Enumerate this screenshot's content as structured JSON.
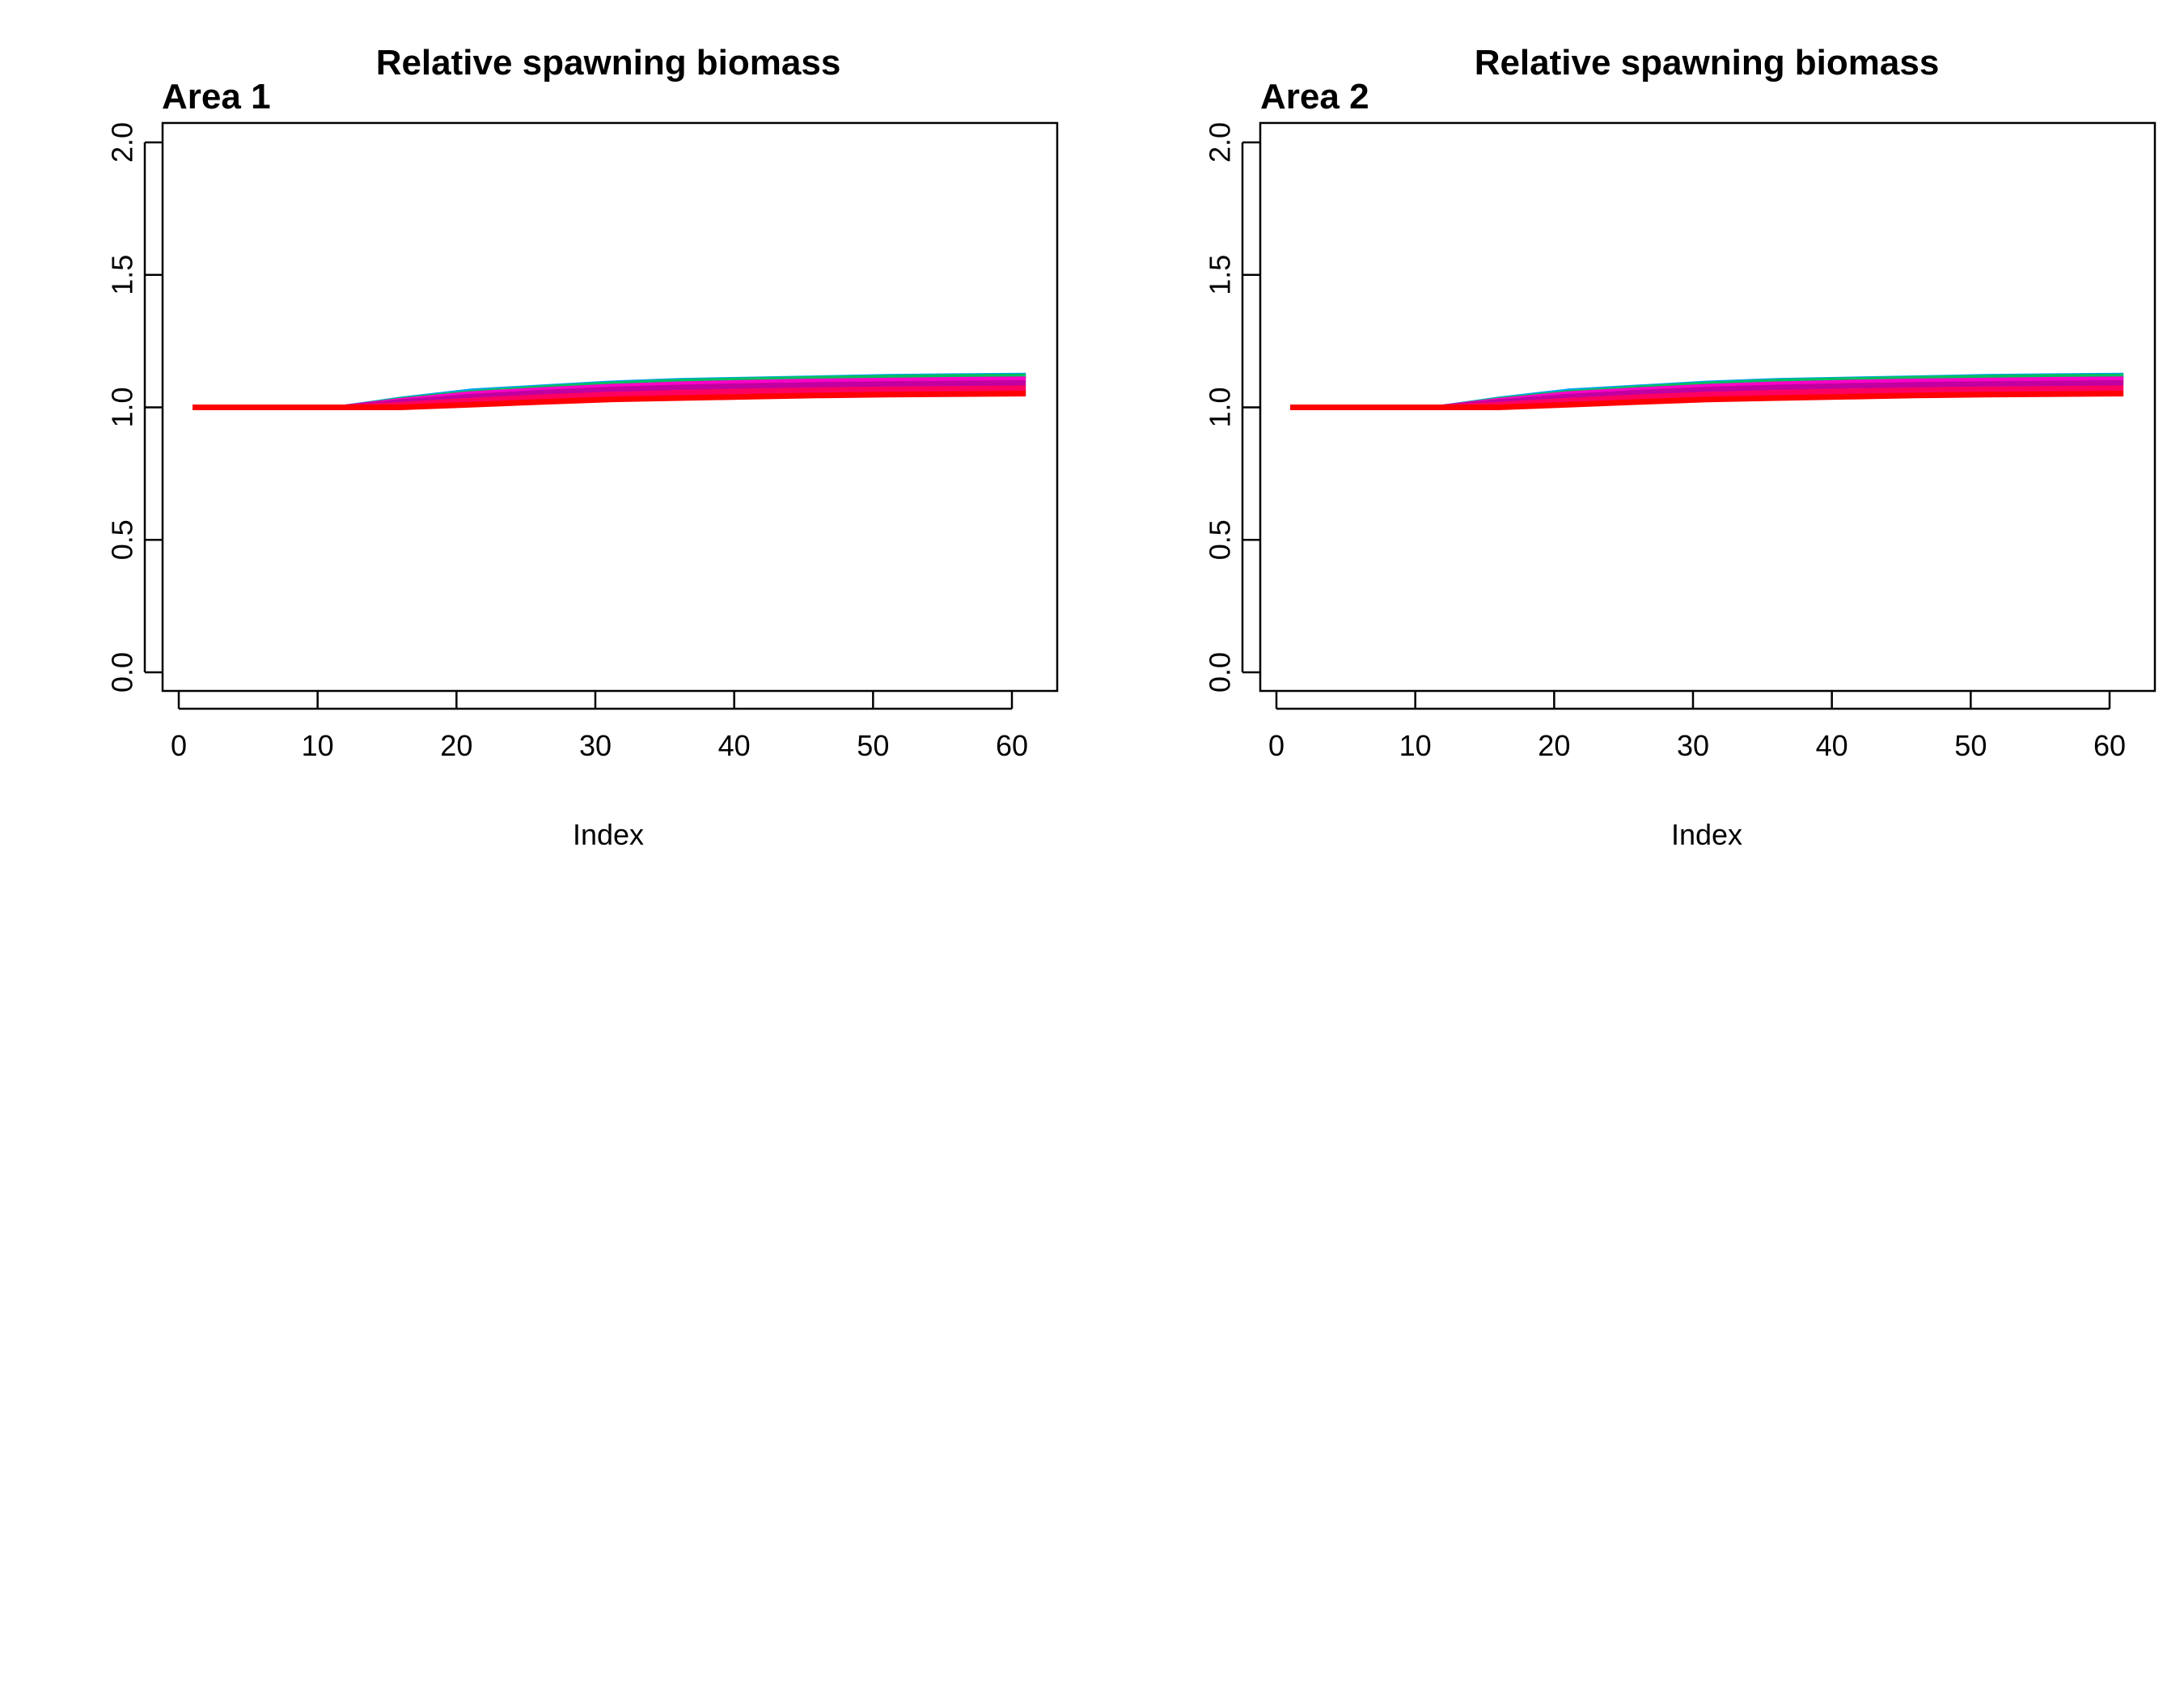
{
  "chart_data": [
    {
      "type": "line",
      "title": "Relative spawning biomass",
      "panel_label": "Area 1",
      "xlabel": "Index",
      "ylabel": "",
      "xlim": [
        1,
        61
      ],
      "ylim": [
        0,
        2
      ],
      "xticks": [
        0,
        10,
        20,
        30,
        40,
        50,
        60
      ],
      "yticks": [
        0.0,
        0.5,
        1.0,
        1.5,
        2.0
      ],
      "xtick_labels": [
        "0",
        "10",
        "20",
        "30",
        "40",
        "50",
        "60"
      ],
      "ytick_labels": [
        "0.0",
        "0.5",
        "1.0",
        "1.5",
        "2.0"
      ],
      "grid": false,
      "x": [
        1,
        12,
        16,
        21,
        26,
        31,
        36,
        41,
        46,
        51,
        56,
        61
      ],
      "series": [
        {
          "color": "#00a0ff",
          "values": [
            1.0,
            1.0,
            1.03,
            1.06,
            1.075,
            1.09,
            1.1,
            1.105,
            1.11,
            1.115,
            1.118,
            1.12
          ]
        },
        {
          "color": "#00c060",
          "values": [
            1.0,
            1.0,
            1.028,
            1.055,
            1.072,
            1.087,
            1.097,
            1.103,
            1.108,
            1.112,
            1.115,
            1.117
          ]
        },
        {
          "color": "#ff00c8",
          "values": [
            1.0,
            1.0,
            1.025,
            1.05,
            1.065,
            1.078,
            1.087,
            1.093,
            1.098,
            1.101,
            1.104,
            1.106
          ]
        },
        {
          "color": "#c000a0",
          "values": [
            1.0,
            1.0,
            1.02,
            1.04,
            1.055,
            1.067,
            1.075,
            1.081,
            1.085,
            1.088,
            1.09,
            1.092
          ]
        },
        {
          "color": "#ff0060",
          "values": [
            1.0,
            1.0,
            1.01,
            1.025,
            1.038,
            1.048,
            1.055,
            1.06,
            1.065,
            1.068,
            1.07,
            1.072
          ]
        },
        {
          "color": "#ff0000",
          "values": [
            1.0,
            1.0,
            1.0,
            1.01,
            1.02,
            1.03,
            1.035,
            1.04,
            1.045,
            1.048,
            1.05,
            1.052
          ]
        }
      ]
    },
    {
      "type": "line",
      "title": "Relative spawning biomass",
      "panel_label": "Area 2",
      "xlabel": "Index",
      "ylabel": "",
      "xlim": [
        1,
        61
      ],
      "ylim": [
        0,
        2
      ],
      "xticks": [
        0,
        10,
        20,
        30,
        40,
        50,
        60
      ],
      "yticks": [
        0.0,
        0.5,
        1.0,
        1.5,
        2.0
      ],
      "xtick_labels": [
        "0",
        "10",
        "20",
        "30",
        "40",
        "50",
        "60"
      ],
      "ytick_labels": [
        "0.0",
        "0.5",
        "1.0",
        "1.5",
        "2.0"
      ],
      "grid": false,
      "x": [
        1,
        12,
        16,
        21,
        26,
        31,
        36,
        41,
        46,
        51,
        56,
        61
      ],
      "series": [
        {
          "color": "#00a0ff",
          "values": [
            1.0,
            1.0,
            1.03,
            1.06,
            1.075,
            1.09,
            1.1,
            1.105,
            1.11,
            1.115,
            1.118,
            1.12
          ]
        },
        {
          "color": "#00c060",
          "values": [
            1.0,
            1.0,
            1.028,
            1.055,
            1.072,
            1.087,
            1.097,
            1.103,
            1.108,
            1.112,
            1.115,
            1.117
          ]
        },
        {
          "color": "#ff00c8",
          "values": [
            1.0,
            1.0,
            1.025,
            1.05,
            1.065,
            1.078,
            1.087,
            1.093,
            1.098,
            1.101,
            1.104,
            1.106
          ]
        },
        {
          "color": "#c000a0",
          "values": [
            1.0,
            1.0,
            1.02,
            1.04,
            1.055,
            1.067,
            1.075,
            1.081,
            1.085,
            1.088,
            1.09,
            1.092
          ]
        },
        {
          "color": "#ff0060",
          "values": [
            1.0,
            1.0,
            1.01,
            1.025,
            1.038,
            1.048,
            1.055,
            1.06,
            1.065,
            1.068,
            1.07,
            1.072
          ]
        },
        {
          "color": "#ff0000",
          "values": [
            1.0,
            1.0,
            1.0,
            1.01,
            1.02,
            1.03,
            1.035,
            1.04,
            1.045,
            1.048,
            1.05,
            1.052
          ]
        }
      ]
    }
  ]
}
